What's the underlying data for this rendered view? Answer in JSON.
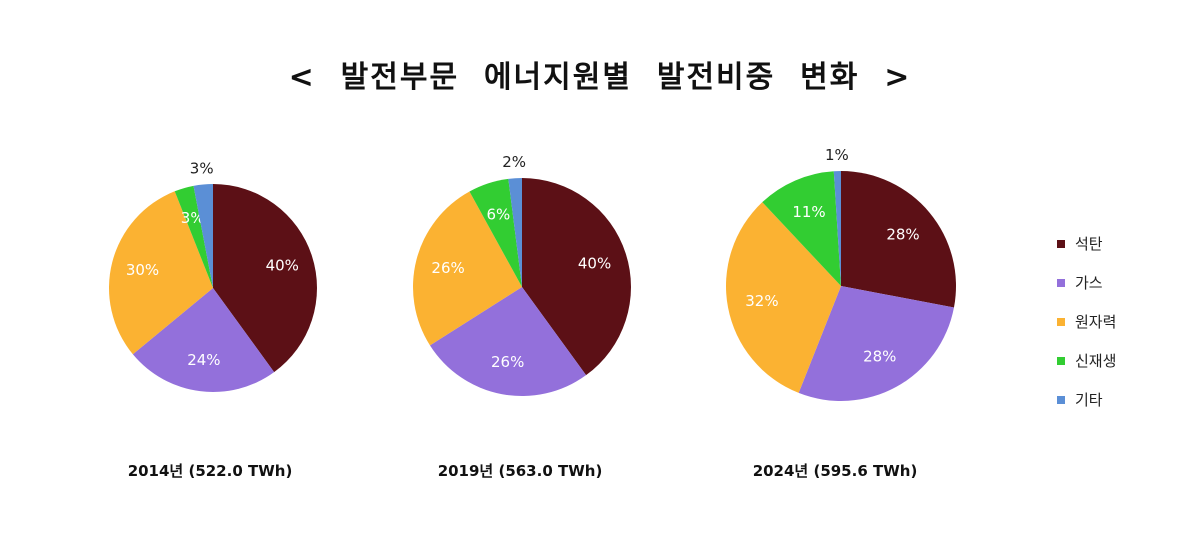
{
  "title": "<  발전부문  에너지원별  발전비중  변화  >",
  "colors": {
    "석탄": "#5c1016",
    "가스": "#9370db",
    "원자력": "#fbb232",
    "신재생": "#32cd32",
    "기타": "#5b8fd6"
  },
  "legend": {
    "items": [
      {
        "label": "석탄",
        "color": "#5c1016"
      },
      {
        "label": "가스",
        "color": "#9370db"
      },
      {
        "label": "원자력",
        "color": "#fbb232"
      },
      {
        "label": "신재생",
        "color": "#32cd32"
      },
      {
        "label": "기타",
        "color": "#5b8fd6"
      }
    ]
  },
  "chart_data": [
    {
      "type": "pie",
      "caption": "2014년 (522.0 TWh)",
      "categories": [
        "석탄",
        "가스",
        "원자력",
        "신재생",
        "기타"
      ],
      "values": [
        40,
        24,
        30,
        3,
        3
      ],
      "labels": [
        "40%",
        "24%",
        "30%",
        "3%",
        "3%"
      ]
    },
    {
      "type": "pie",
      "caption": "2019년 (563.0 TWh)",
      "categories": [
        "석탄",
        "가스",
        "원자력",
        "신재생",
        "기타"
      ],
      "values": [
        40,
        26,
        26,
        6,
        2
      ],
      "labels": [
        "40%",
        "26%",
        "26%",
        "6%",
        "2%"
      ]
    },
    {
      "type": "pie",
      "caption": "2024년 (595.6 TWh)",
      "categories": [
        "석탄",
        "가스",
        "원자력",
        "신재생",
        "기타"
      ],
      "values": [
        28,
        28,
        32,
        11,
        1
      ],
      "labels": [
        "28%",
        "28%",
        "32%",
        "11%",
        "1%"
      ]
    }
  ]
}
